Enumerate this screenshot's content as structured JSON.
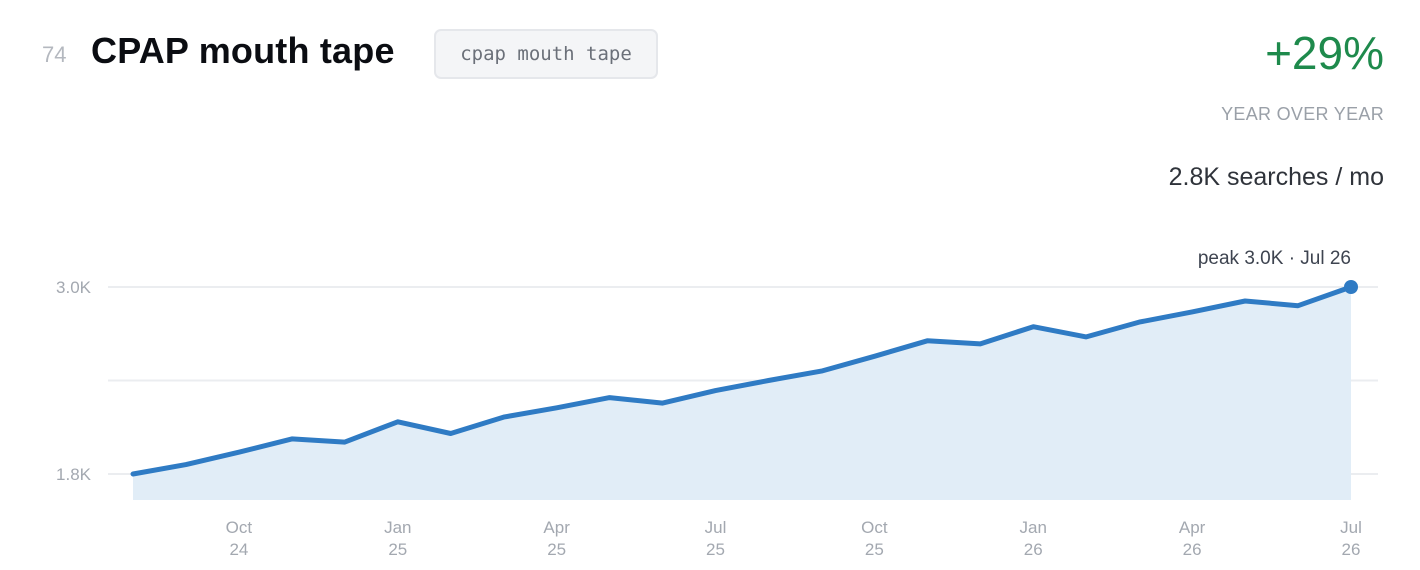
{
  "header": {
    "rank": "74",
    "title": "CPAP mouth tape",
    "keyword_tag": "cpap mouth tape"
  },
  "stats": {
    "growth": "+29%",
    "growth_label": "YEAR OVER YEAR",
    "volume": "2.8K searches / mo",
    "peak_label": "peak 3.0K · Jul 26"
  },
  "colors": {
    "line": "#2f7bc4",
    "area": "#e1edf7",
    "growth": "#1e8a4c",
    "grid": "#ebedf0"
  },
  "chart_data": {
    "type": "area",
    "title": "",
    "xlabel": "",
    "ylabel": "",
    "y_ticks": [
      {
        "value": 3000,
        "label": "3.0K"
      },
      {
        "value": 2400,
        "label": ""
      },
      {
        "value": 1800,
        "label": "1.8K"
      }
    ],
    "x_ticks": [
      {
        "index": 2,
        "month": "Oct",
        "year": "24"
      },
      {
        "index": 5,
        "month": "Jan",
        "year": "25"
      },
      {
        "index": 8,
        "month": "Apr",
        "year": "25"
      },
      {
        "index": 11,
        "month": "Jul",
        "year": "25"
      },
      {
        "index": 14,
        "month": "Oct",
        "year": "25"
      },
      {
        "index": 17,
        "month": "Jan",
        "year": "26"
      },
      {
        "index": 20,
        "month": "Apr",
        "year": "26"
      },
      {
        "index": 23,
        "month": "Jul",
        "year": "26"
      }
    ],
    "x": [
      "Aug 24",
      "Sep 24",
      "Oct 24",
      "Nov 24",
      "Dec 24",
      "Jan 25",
      "Feb 25",
      "Mar 25",
      "Apr 25",
      "May 25",
      "Jun 25",
      "Jul 25",
      "Aug 25",
      "Sep 25",
      "Oct 25",
      "Nov 25",
      "Dec 25",
      "Jan 26",
      "Feb 26",
      "Mar 26",
      "Apr 26",
      "May 26",
      "Jun 26",
      "Jul 26"
    ],
    "series": [
      {
        "values": [
          1800,
          1860,
          1940,
          2025,
          2005,
          2135,
          2060,
          2165,
          2225,
          2290,
          2255,
          2335,
          2400,
          2460,
          2555,
          2655,
          2635,
          2745,
          2680,
          2775,
          2840,
          2910,
          2880,
          2950
        ]
      }
    ],
    "peak": {
      "index": 23,
      "value": 3000
    },
    "ylim": [
      1800,
      3000
    ],
    "grid": true,
    "legend": "none"
  }
}
